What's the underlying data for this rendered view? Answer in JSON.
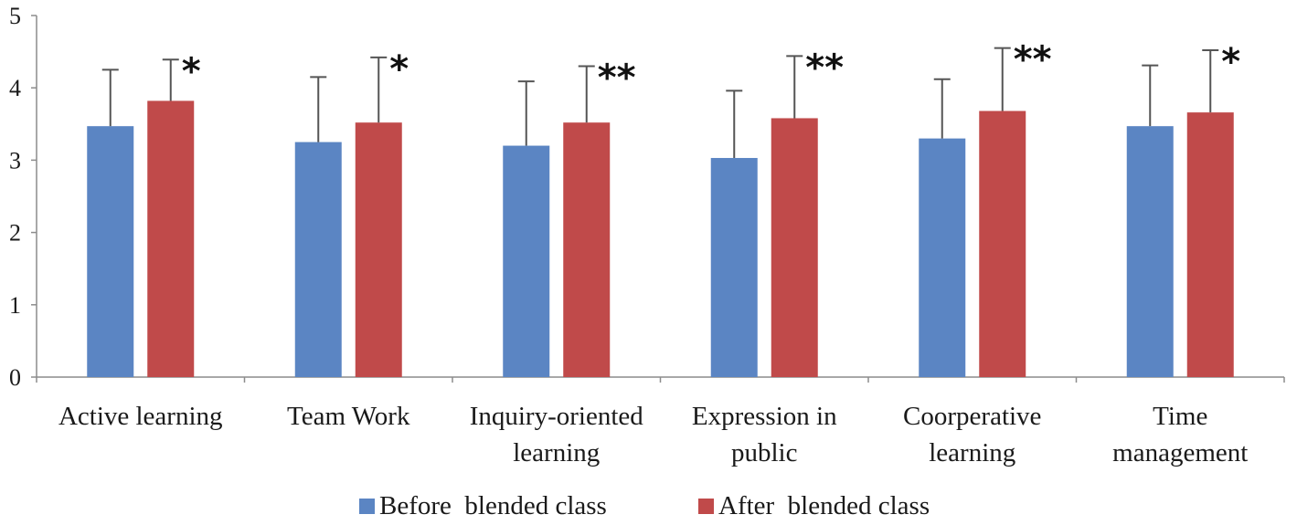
{
  "chart_data": {
    "type": "bar",
    "title": "",
    "xlabel": "",
    "ylabel": "",
    "ylim": [
      0,
      5
    ],
    "yticks": [
      0,
      1,
      2,
      3,
      4,
      5
    ],
    "grid": false,
    "legend_position": "bottom-center",
    "categories": [
      [
        "Active learning"
      ],
      [
        "Team Work"
      ],
      [
        "Inquiry-oriented",
        "learning"
      ],
      [
        "Expression in",
        "public"
      ],
      [
        "Coorperative",
        "learning"
      ],
      [
        "Time",
        "management"
      ]
    ],
    "series": [
      {
        "name": "Before  blended class",
        "color": "#5B85C3",
        "values": [
          3.47,
          3.25,
          3.2,
          3.03,
          3.3,
          3.47
        ],
        "errors": [
          0.78,
          0.9,
          0.89,
          0.93,
          0.82,
          0.84
        ]
      },
      {
        "name": "After  blended class",
        "color": "#C04A4A",
        "values": [
          3.82,
          3.52,
          3.52,
          3.58,
          3.68,
          3.66
        ],
        "errors": [
          0.57,
          0.9,
          0.78,
          0.86,
          0.87,
          0.86
        ]
      }
    ],
    "significance": [
      "*",
      "*",
      "**",
      "**",
      "**",
      "*"
    ]
  }
}
